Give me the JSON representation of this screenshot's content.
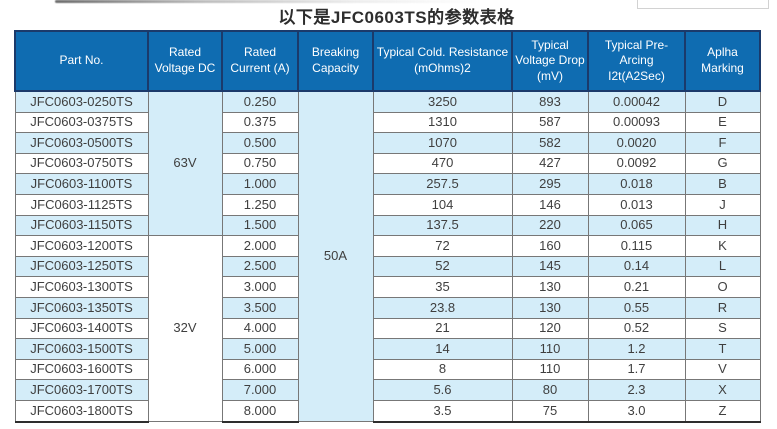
{
  "page": {
    "title": "以下是JFC0603TS的参数表格"
  },
  "colors": {
    "header_bg": "#0F6CB1",
    "header_border": "#1B3A6B",
    "header_text": "#FFFFFF",
    "alt_row_bg": "#D4EDF9",
    "grid_line": "#777777",
    "data_text": "#3F3F3F"
  },
  "table": {
    "columns": [
      {
        "key": "part",
        "label": "Part No."
      },
      {
        "key": "voltage",
        "label": "Rated Voltage DC"
      },
      {
        "key": "current",
        "label": "Rated Current (A)"
      },
      {
        "key": "breaking",
        "label": "Breaking Capacity"
      },
      {
        "key": "resistance",
        "label": "Typical Cold. Resistance (mOhms)2"
      },
      {
        "key": "drop",
        "label": "Typical Voltage Drop (mV)"
      },
      {
        "key": "i2t",
        "label": "Typical Pre-Arcing I2t(A2Sec)"
      },
      {
        "key": "marking",
        "label": "Aplha Marking"
      }
    ],
    "breaking_capacity": "50A",
    "voltage_groups": [
      {
        "label": "63V",
        "row_count": 7,
        "highlight": true
      },
      {
        "label": "32V",
        "row_count": 9,
        "highlight": false
      }
    ],
    "rows": [
      {
        "part": "JFC0603-0250TS",
        "current": "0.250",
        "resistance": "3250",
        "drop": "893",
        "i2t": "0.00042",
        "marking": "D"
      },
      {
        "part": "JFC0603-0375TS",
        "current": "0.375",
        "resistance": "1310",
        "drop": "587",
        "i2t": "0.00093",
        "marking": "E"
      },
      {
        "part": "JFC0603-0500TS",
        "current": "0.500",
        "resistance": "1070",
        "drop": "582",
        "i2t": "0.0020",
        "marking": "F"
      },
      {
        "part": "JFC0603-0750TS",
        "current": "0.750",
        "resistance": "470",
        "drop": "427",
        "i2t": "0.0092",
        "marking": "G"
      },
      {
        "part": "JFC0603-1100TS",
        "current": "1.000",
        "resistance": "257.5",
        "drop": "295",
        "i2t": "0.018",
        "marking": "B"
      },
      {
        "part": "JFC0603-1125TS",
        "current": "1.250",
        "resistance": "104",
        "drop": "146",
        "i2t": "0.013",
        "marking": "J"
      },
      {
        "part": "JFC0603-1150TS",
        "current": "1.500",
        "resistance": "137.5",
        "drop": "220",
        "i2t": "0.065",
        "marking": "H"
      },
      {
        "part": "JFC0603-1200TS",
        "current": "2.000",
        "resistance": "72",
        "drop": "160",
        "i2t": "0.115",
        "marking": "K"
      },
      {
        "part": "JFC0603-1250TS",
        "current": "2.500",
        "resistance": "52",
        "drop": "145",
        "i2t": "0.14",
        "marking": "L"
      },
      {
        "part": "JFC0603-1300TS",
        "current": "3.000",
        "resistance": "35",
        "drop": "130",
        "i2t": "0.21",
        "marking": "O"
      },
      {
        "part": "JFC0603-1350TS",
        "current": "3.500",
        "resistance": "23.8",
        "drop": "130",
        "i2t": "0.55",
        "marking": "R"
      },
      {
        "part": "JFC0603-1400TS",
        "current": "4.000",
        "resistance": "21",
        "drop": "120",
        "i2t": "0.52",
        "marking": "S"
      },
      {
        "part": "JFC0603-1500TS",
        "current": "5.000",
        "resistance": "14",
        "drop": "110",
        "i2t": "1.2",
        "marking": "T"
      },
      {
        "part": "JFC0603-1600TS",
        "current": "6.000",
        "resistance": "8",
        "drop": "110",
        "i2t": "1.7",
        "marking": "V"
      },
      {
        "part": "JFC0603-1700TS",
        "current": "7.000",
        "resistance": "5.6",
        "drop": "80",
        "i2t": "2.3",
        "marking": "X"
      },
      {
        "part": "JFC0603-1800TS",
        "current": "8.000",
        "resistance": "3.5",
        "drop": "75",
        "i2t": "3.0",
        "marking": "Z"
      }
    ]
  }
}
